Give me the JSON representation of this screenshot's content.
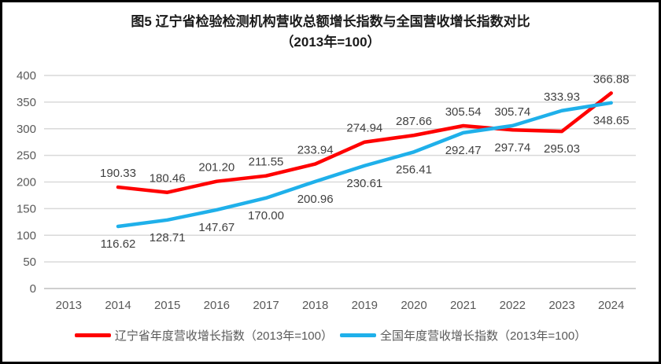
{
  "window": {
    "background": "#ffffff",
    "border_color": "#000000"
  },
  "title": {
    "line1": "图5  辽宁省检验检测机构营收总额增长指数与全国营收增长指数对比",
    "line2": "（2013年=100）"
  },
  "chart_data": {
    "type": "line",
    "title": "图5 辽宁省检验检测机构营收总额增长指数与全国营收增长指数对比（2013年=100）",
    "categories": [
      "2013",
      "2014",
      "2015",
      "2016",
      "2017",
      "2018",
      "2019",
      "2020",
      "2021",
      "2022",
      "2023",
      "2024"
    ],
    "series_start_index": 1,
    "series": [
      {
        "name": "辽宁省年度营收增长指数（2013年=100）",
        "color": "#FF0000",
        "values": [
          190.33,
          180.46,
          201.2,
          211.55,
          233.94,
          274.94,
          287.66,
          305.54,
          297.74,
          295.03,
          366.88
        ],
        "label_positions": [
          "above",
          "above",
          "above",
          "above",
          "above",
          "above",
          "above",
          "above",
          "below",
          "below",
          "above"
        ]
      },
      {
        "name": "全国年度营收增长指数（2013年=100）",
        "color": "#1FB0EA",
        "values": [
          116.62,
          128.71,
          147.67,
          170.0,
          200.96,
          230.61,
          256.41,
          292.47,
          305.74,
          333.93,
          348.65
        ],
        "label_positions": [
          "below",
          "below",
          "below",
          "below",
          "below",
          "below",
          "below",
          "below",
          "above",
          "above",
          "below"
        ]
      }
    ],
    "xlabel": "",
    "ylabel": "",
    "ylim": [
      0,
      400
    ],
    "ytick_step": 50,
    "grid": true,
    "legend_position": "bottom",
    "decimals": 2
  },
  "style": {
    "grid_color": "#D9D9D9",
    "axis_line_color": "#BFBFBF",
    "tick_label_color": "#595959",
    "data_label_color": "#404040"
  },
  "legend": {
    "items": [
      {
        "label": "辽宁省年度营收增长指数（2013年=100）"
      },
      {
        "label": "全国年度营收增长指数（2013年=100）"
      }
    ]
  }
}
